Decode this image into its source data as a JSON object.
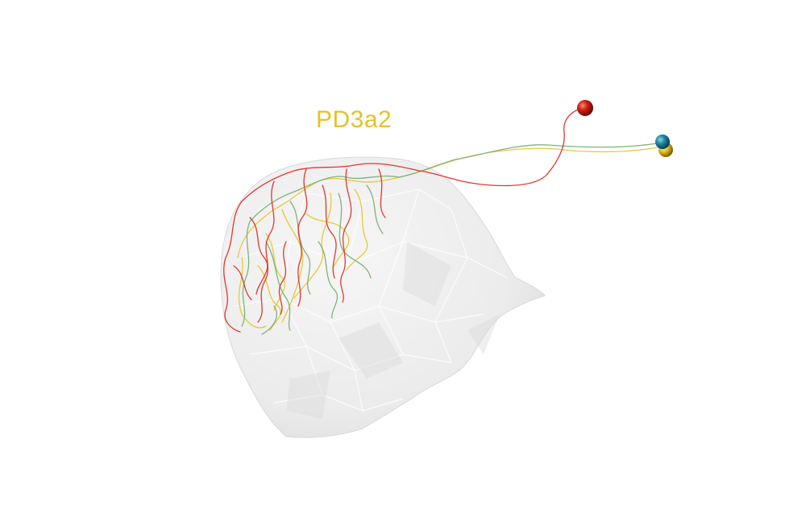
{
  "label": {
    "text": "PD3a2"
  },
  "colors": {
    "background": "#ffffff",
    "label": "#e5c12a",
    "mesh_fill": "#e9e9e9",
    "mesh_edge": "#ffffff",
    "neuron_red": "#e2372f",
    "neuron_green": "#7fb37a",
    "neuron_yellow": "#e6c93a",
    "soma_red": "#d11e12",
    "soma_teal": "#1f8aa6",
    "soma_yellow": "#e8c21f"
  },
  "scene": {
    "structure": "translucent-mesh",
    "neuron_count": 3,
    "somata": [
      "red",
      "teal",
      "yellow"
    ]
  }
}
